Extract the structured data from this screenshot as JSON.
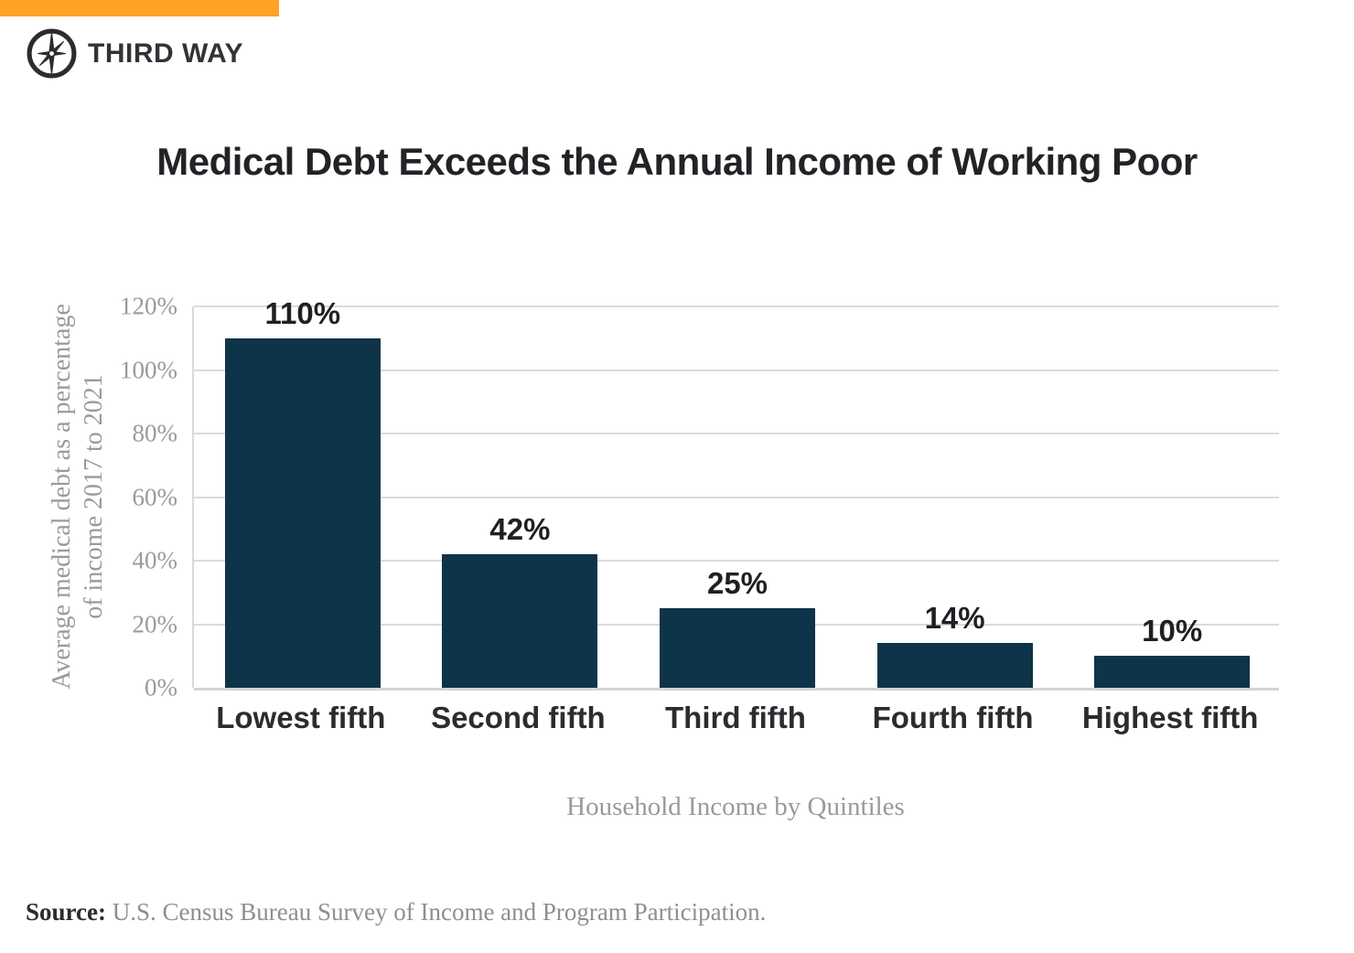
{
  "brand": {
    "name": "THIRD WAY",
    "logo_icon": "compass-star-icon",
    "accent_color": "#FFA226",
    "logo_color": "#2B2B30"
  },
  "chart_data": {
    "type": "bar",
    "title": "Medical Debt Exceeds the Annual Income of Working Poor",
    "categories": [
      "Lowest fifth",
      "Second fifth",
      "Third fifth",
      "Fourth fifth",
      "Highest fifth"
    ],
    "values": [
      110,
      42,
      25,
      14,
      10
    ],
    "data_labels": [
      "110%",
      "42%",
      "25%",
      "14%",
      "10%"
    ],
    "xlabel": "Household Income by Quintiles",
    "ylabel_line1": "Average medical debt as a percentage",
    "ylabel_line2": "of income 2017 to 2021",
    "ylim": [
      0,
      120
    ],
    "ytick_step": 20,
    "ytick_labels": [
      "0%",
      "20%",
      "40%",
      "60%",
      "80%",
      "100%",
      "120%"
    ],
    "grid": true,
    "legend": "none",
    "bar_color": "#0D3449",
    "gridline_color": "#DBDBDB",
    "axis_text_color": "#9A9A9A",
    "label_text_color": "#1F1F24"
  },
  "source": {
    "label": "Source:",
    "text": " U.S. Census Bureau Survey of Income and Program Participation."
  }
}
